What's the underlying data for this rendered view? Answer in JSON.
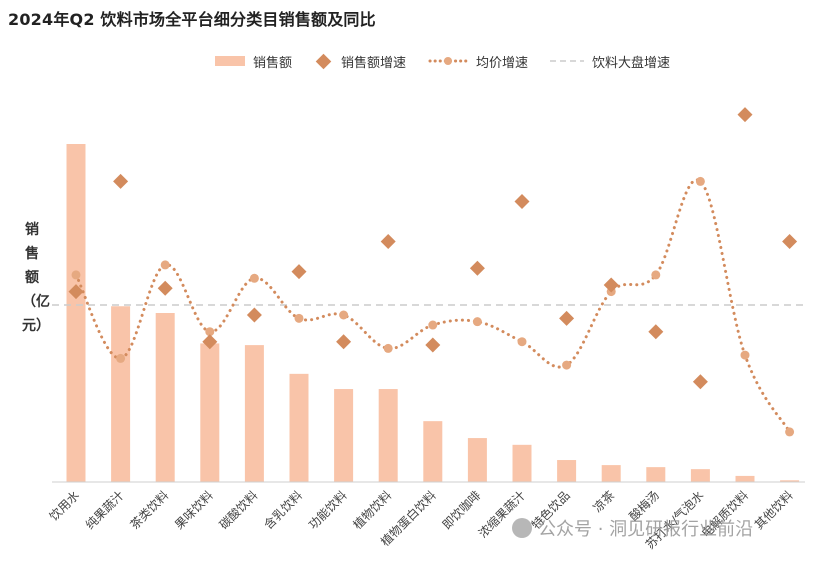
{
  "chart_data": {
    "type": "bar",
    "title": "2024年Q2 饮料市场全平台细分类目销售额及同比",
    "ylabel": "销售额（亿元）",
    "categories": [
      "饮用水",
      "纯果蔬汁",
      "茶类饮料",
      "果味饮料",
      "碳酸饮料",
      "含乳饮料",
      "功能饮料",
      "植物饮料",
      "植物蛋白饮料",
      "即饮咖啡",
      "浓缩果蔬汁",
      "特色饮品",
      "凉茶",
      "酸梅汤",
      "苏打水/气泡水",
      "电解质饮料",
      "其他饮料"
    ],
    "legend_position": "top",
    "grid": false,
    "axis_values_shown": false,
    "series": [
      {
        "name": "销售额",
        "type": "bar",
        "color": "#f9c4a9",
        "values": [
          100,
          52,
          50,
          41,
          40.5,
          32,
          27.5,
          27.5,
          18,
          13,
          11,
          6.5,
          5,
          4.4,
          3.8,
          1.8,
          0.5
        ]
      },
      {
        "name": "销售额增速",
        "type": "scatter",
        "marker": "diamond",
        "color": "#d38b5d",
        "values": [
          57,
          90,
          58,
          42,
          50,
          63,
          42,
          72,
          41,
          64,
          84,
          49,
          59,
          45,
          30,
          110,
          72
        ]
      },
      {
        "name": "均价增速",
        "type": "line",
        "style": "dotted",
        "color": "#d38b5d",
        "values": [
          62,
          37,
          65,
          45,
          61,
          49,
          50,
          40,
          47,
          48,
          42,
          35,
          57,
          62,
          90,
          38,
          15
        ]
      },
      {
        "name": "饮料大盘增速",
        "type": "reference",
        "style": "dashed",
        "color": "#cccccc",
        "value": 53
      }
    ]
  },
  "watermark": {
    "text": "公众号 · 洞见研报行业前沿"
  }
}
